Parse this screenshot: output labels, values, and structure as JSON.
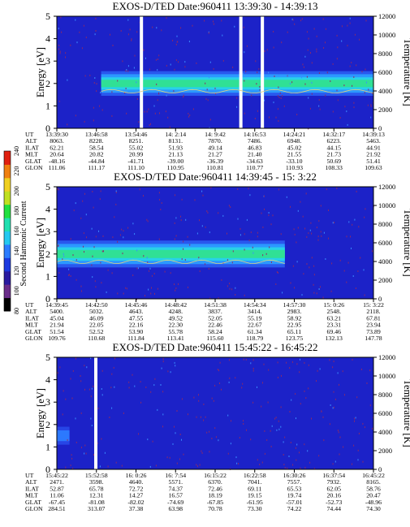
{
  "colorbar": {
    "label": "Second Harmonic Current",
    "ticks": [
      "80",
      "100",
      "120",
      "140",
      "160",
      "180",
      "200",
      "220",
      "240"
    ],
    "colors": [
      "#000000",
      "#6a2c8a",
      "#2a1aa0",
      "#1c3ae0",
      "#2c7cff",
      "#24c8f0",
      "#20e0b0",
      "#20e040",
      "#c0e020",
      "#f0d020",
      "#f08010",
      "#e02010"
    ]
  },
  "chart_data": [
    {
      "type": "heatmap",
      "title": "EXOS-D/TED   Date:960411   13:39:30 - 14:39:13",
      "ylabel": "Energy [eV]",
      "y2label": "Temperature [K]",
      "ylim": [
        0,
        5
      ],
      "y2lim": [
        0,
        12000
      ],
      "yticks": [
        "0",
        "1",
        "2",
        "3",
        "4",
        "5"
      ],
      "y2ticks": [
        "0",
        "2000",
        "4000",
        "6000",
        "8000",
        "10000",
        "12000"
      ],
      "band": {
        "from_t": 0.14,
        "to_t": 1.0,
        "center_eV": 2.0,
        "half_width_eV": 0.55,
        "peak_level": "green"
      },
      "gaps_t": [
        0.262,
        0.576,
        0.644
      ],
      "rows": [
        {
          "label": "UT",
          "values": [
            "13:39:30",
            "13:46:58",
            "13:54:46",
            "14: 2:14",
            "14: 9:42",
            "14:16:53",
            "14:24:21",
            "14:32:17",
            "14:39:13"
          ]
        },
        {
          "label": "ALT",
          "values": [
            "8063.",
            "8228.",
            "8251.",
            "8131.",
            "7870.",
            "7486.",
            "6948.",
            "6223.",
            "5463."
          ]
        },
        {
          "label": "ILAT",
          "values": [
            "62.21",
            "58.54",
            "55.02",
            "51.93",
            "49.14",
            "46.83",
            "45.02",
            "44.15",
            "44.91"
          ]
        },
        {
          "label": "MLT",
          "values": [
            "20.64",
            "20.82",
            "20.99",
            "21.13",
            "21.27",
            "21.40",
            "21.55",
            "21.73",
            "21.92"
          ]
        },
        {
          "label": "GLAT",
          "values": [
            "-48.16",
            "-44.84",
            "-41.71",
            "-39.00",
            "-36.39",
            "-34.63",
            "-33.10",
            "50.69",
            "51.41"
          ]
        },
        {
          "label": "GLON",
          "values": [
            "111.06",
            "111.17",
            "111.10",
            "110.95",
            "110.81",
            "110.77",
            "110.93",
            "108.33",
            "109.63"
          ]
        }
      ]
    },
    {
      "type": "heatmap",
      "title": "EXOS-D/TED   Date:960411   14:39:45 - 15: 3:22",
      "ylabel": "Energy [eV]",
      "y2label": "Temperature [K]",
      "ylim": [
        0,
        5
      ],
      "y2lim": [
        0,
        12000
      ],
      "yticks": [
        "0",
        "1",
        "2",
        "3",
        "4",
        "5"
      ],
      "y2ticks": [
        "0",
        "2000",
        "4000",
        "6000",
        "8000",
        "10000",
        "12000"
      ],
      "band": {
        "from_t": 0.0,
        "to_t": 0.72,
        "center_eV": 2.0,
        "half_width_eV": 0.6,
        "peak_level": "green"
      },
      "gaps_t": [],
      "rows": [
        {
          "label": "UT",
          "values": [
            "14:39:45",
            "14:42:50",
            "14:45:46",
            "14:48:42",
            "14:51:38",
            "14:54:34",
            "14:57:30",
            "15: 0:26",
            "15: 3:22"
          ]
        },
        {
          "label": "ALT",
          "values": [
            "5400.",
            "5032.",
            "4643.",
            "4248.",
            "3837.",
            "3414.",
            "2983.",
            "2548.",
            "2118."
          ]
        },
        {
          "label": "ILAT",
          "values": [
            "45.04",
            "46.09",
            "47.55",
            "49.52",
            "52.05",
            "55.19",
            "58.92",
            "63.21",
            "67.81"
          ]
        },
        {
          "label": "MLT",
          "values": [
            "21.94",
            "22.05",
            "22.16",
            "22.30",
            "22.46",
            "22.67",
            "22.95",
            "23.31",
            "23.94"
          ]
        },
        {
          "label": "GLAT",
          "values": [
            "51.54",
            "52.52",
            "53.90",
            "55.78",
            "58.24",
            "61.34",
            "65.11",
            "69.46",
            "73.89"
          ]
        },
        {
          "label": "GLON",
          "values": [
            "109.76",
            "110.68",
            "111.84",
            "113.41",
            "115.60",
            "118.79",
            "123.75",
            "132.13",
            "147.78"
          ]
        }
      ]
    },
    {
      "type": "heatmap",
      "title": "EXOS-D/TED   Date:960411   15:45:22 - 16:45:22",
      "ylabel": "Energy [eV]",
      "y2label": "Temperature [K]",
      "ylim": [
        0,
        5
      ],
      "y2lim": [
        0,
        12000
      ],
      "yticks": [
        "0",
        "1",
        "2",
        "3",
        "4",
        "5"
      ],
      "y2ticks": [
        "0",
        "2000",
        "4000",
        "6000",
        "8000",
        "10000",
        "12000"
      ],
      "band": {
        "from_t": 0.0,
        "to_t": 0.04,
        "center_eV": 1.5,
        "half_width_eV": 0.4,
        "peak_level": "blue"
      },
      "gaps_t": [
        0.118
      ],
      "rows": [
        {
          "label": "UT",
          "values": [
            "15:45:22",
            "15:52:58",
            "16: 0:26",
            "16: 7:54",
            "16:15:22",
            "16:22:58",
            "16:30:26",
            "16:37:54",
            "16:45:22"
          ]
        },
        {
          "label": "ALT",
          "values": [
            "2471.",
            "3598.",
            "4640.",
            "5571.",
            "6370.",
            "7041.",
            "7557.",
            "7932.",
            "8165."
          ]
        },
        {
          "label": "ILAT",
          "values": [
            "52.87",
            "65.78",
            "72.72",
            "74.37",
            "72.46",
            "69.11",
            "65.53",
            "62.05",
            "58.76"
          ]
        },
        {
          "label": "MLT",
          "values": [
            "11.06",
            "12.31",
            "14.27",
            "16.57",
            "18.19",
            "19.15",
            "19.74",
            "20.16",
            "20.47"
          ]
        },
        {
          "label": "GLAT",
          "values": [
            "-67.45",
            "-81.08",
            "-82.02",
            "-74.69",
            "-67.85",
            "-61.95",
            "-57.01",
            "-52.73",
            "-48.96"
          ]
        },
        {
          "label": "GLON",
          "values": [
            "284.51",
            "313.07",
            "37.38",
            "63.98",
            "70.78",
            "73.30",
            "74.22",
            "74.44",
            "74.30"
          ]
        }
      ]
    }
  ]
}
